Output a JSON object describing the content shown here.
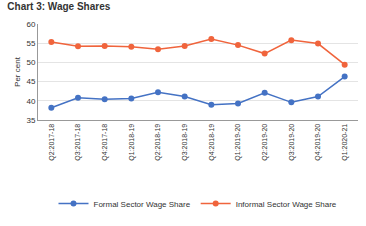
{
  "chart_data": {
    "type": "line",
    "title": "Chart 3: Wage Shares",
    "y_label": "Per cent",
    "categories": [
      "Q2:2017-18",
      "Q3:2017-18",
      "Q4:2017-18",
      "Q1:2018-19",
      "Q2:2018-19",
      "Q3:2018-19",
      "Q4:2018-19",
      "Q1:2019-20",
      "Q2:2019-20",
      "Q3:2019-20",
      "Q4:2019-20",
      "Q1:2020-21"
    ],
    "series": [
      {
        "name": "Formal Sector Wage Share",
        "color": "#4472c4",
        "marker": "circle",
        "values": [
          38.2,
          40.8,
          40.4,
          40.6,
          42.2,
          41.1,
          39.0,
          39.3,
          42.1,
          39.6,
          41.1,
          46.3
        ]
      },
      {
        "name": "Informal Sector Wage Share",
        "color": "#f0643c",
        "marker": "circle",
        "values": [
          55.3,
          54.2,
          54.3,
          54.1,
          53.4,
          54.3,
          56.1,
          54.5,
          52.3,
          55.8,
          54.9,
          49.4
        ]
      }
    ],
    "ylim": [
      35,
      60
    ],
    "yticks": [
      35,
      40,
      45,
      50,
      55,
      60
    ],
    "grid": true,
    "legend": "bottom"
  }
}
